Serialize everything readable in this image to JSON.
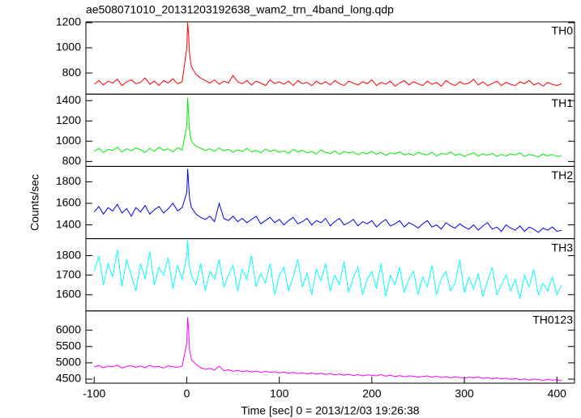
{
  "chart_data": [
    {
      "type": "line",
      "title": "ae508071010_20131203192638_wam2_trn_4band_long.qdp",
      "label": "TH0",
      "color": "#ff0000",
      "x": [
        -100,
        -95,
        -90,
        -85,
        -80,
        -75,
        -70,
        -65,
        -60,
        -55,
        -50,
        -45,
        -40,
        -35,
        -30,
        -25,
        -20,
        -15,
        -10,
        -5,
        0,
        1,
        2,
        3,
        5,
        10,
        15,
        20,
        25,
        30,
        35,
        40,
        45,
        50,
        55,
        60,
        65,
        70,
        75,
        80,
        85,
        90,
        95,
        100,
        105,
        110,
        115,
        120,
        125,
        130,
        135,
        140,
        145,
        150,
        155,
        160,
        165,
        170,
        175,
        180,
        185,
        190,
        195,
        200,
        205,
        210,
        215,
        220,
        225,
        230,
        235,
        240,
        245,
        250,
        255,
        260,
        265,
        270,
        275,
        280,
        285,
        290,
        295,
        300,
        305,
        310,
        315,
        320,
        325,
        330,
        335,
        340,
        345,
        350,
        355,
        360,
        365,
        370,
        375,
        380,
        385,
        390,
        395,
        400,
        405
      ],
      "values": [
        710,
        740,
        705,
        735,
        720,
        750,
        700,
        730,
        745,
        715,
        725,
        760,
        710,
        735,
        700,
        740,
        720,
        755,
        715,
        730,
        1000,
        1200,
        1100,
        950,
        850,
        790,
        760,
        740,
        720,
        745,
        710,
        735,
        720,
        780,
        730,
        715,
        740,
        705,
        735,
        720,
        700,
        745,
        715,
        730,
        710,
        735,
        700,
        740,
        715,
        725,
        700,
        735,
        710,
        730,
        705,
        740,
        715,
        700,
        735,
        720,
        705,
        730,
        715,
        745,
        700,
        725,
        710,
        735,
        695,
        720,
        740,
        705,
        730,
        715,
        700,
        735,
        710,
        725,
        695,
        740,
        715,
        700,
        730,
        710,
        720,
        750,
        705,
        730,
        700,
        715,
        735,
        700,
        725,
        710,
        700,
        730,
        715,
        740,
        705,
        720,
        695,
        725,
        710,
        700,
        715
      ],
      "xlim": [
        -109,
        419
      ],
      "ylim": [
        632,
        1206
      ],
      "yticks": [
        800,
        1000,
        1200
      ]
    },
    {
      "type": "line",
      "label": "TH1",
      "color": "#00ee00",
      "x": [
        -100,
        -95,
        -90,
        -85,
        -80,
        -75,
        -70,
        -65,
        -60,
        -55,
        -50,
        -45,
        -40,
        -35,
        -30,
        -25,
        -20,
        -15,
        -10,
        -5,
        0,
        1,
        2,
        3,
        5,
        10,
        15,
        20,
        25,
        30,
        35,
        40,
        45,
        50,
        55,
        60,
        65,
        70,
        75,
        80,
        85,
        90,
        95,
        100,
        105,
        110,
        115,
        120,
        125,
        130,
        135,
        140,
        145,
        150,
        155,
        160,
        165,
        170,
        175,
        180,
        185,
        190,
        195,
        200,
        205,
        210,
        215,
        220,
        225,
        230,
        235,
        240,
        245,
        250,
        255,
        260,
        265,
        270,
        275,
        280,
        285,
        290,
        295,
        300,
        305,
        310,
        315,
        320,
        325,
        330,
        335,
        340,
        345,
        350,
        355,
        360,
        365,
        370,
        375,
        380,
        385,
        390,
        395,
        400,
        405
      ],
      "values": [
        900,
        930,
        890,
        920,
        910,
        940,
        895,
        925,
        905,
        935,
        915,
        890,
        930,
        900,
        940,
        910,
        925,
        895,
        935,
        915,
        1150,
        1430,
        1250,
        1100,
        1000,
        950,
        930,
        910,
        925,
        900,
        935,
        905,
        920,
        890,
        915,
        900,
        930,
        895,
        910,
        885,
        925,
        900,
        915,
        890,
        905,
        880,
        920,
        895,
        910,
        885,
        900,
        875,
        915,
        890,
        880,
        905,
        870,
        900,
        885,
        895,
        865,
        890,
        875,
        900,
        870,
        890,
        860,
        885,
        875,
        895,
        865,
        880,
        860,
        890,
        875,
        865,
        890,
        855,
        880,
        870,
        895,
        860,
        875,
        850,
        870,
        885,
        855,
        875,
        860,
        880,
        850,
        870,
        855,
        875,
        865,
        885,
        850,
        870,
        860,
        845,
        875,
        855,
        870,
        850,
        860
      ],
      "xlim": [
        -109,
        419
      ],
      "ylim": [
        752,
        1464
      ],
      "yticks": [
        800,
        1000,
        1200,
        1400
      ]
    },
    {
      "type": "line",
      "label": "TH2",
      "color": "#0000ee",
      "ylabel": "Counts/sec",
      "x": [
        -100,
        -95,
        -90,
        -85,
        -80,
        -75,
        -70,
        -65,
        -60,
        -55,
        -50,
        -45,
        -40,
        -35,
        -30,
        -25,
        -20,
        -15,
        -10,
        -5,
        0,
        1,
        2,
        3,
        5,
        10,
        15,
        20,
        25,
        30,
        35,
        40,
        45,
        50,
        55,
        60,
        65,
        70,
        75,
        80,
        85,
        90,
        95,
        100,
        105,
        110,
        115,
        120,
        125,
        130,
        135,
        140,
        145,
        150,
        155,
        160,
        165,
        170,
        175,
        180,
        185,
        190,
        195,
        200,
        205,
        210,
        215,
        220,
        225,
        230,
        235,
        240,
        245,
        250,
        255,
        260,
        265,
        270,
        275,
        280,
        285,
        290,
        295,
        300,
        305,
        310,
        315,
        320,
        325,
        330,
        335,
        340,
        345,
        350,
        355,
        360,
        365,
        370,
        375,
        380,
        385,
        390,
        395,
        400,
        405
      ],
      "values": [
        1520,
        1570,
        1500,
        1560,
        1530,
        1590,
        1510,
        1550,
        1480,
        1560,
        1520,
        1580,
        1500,
        1540,
        1570,
        1510,
        1550,
        1600,
        1530,
        1560,
        1700,
        1920,
        1780,
        1650,
        1560,
        1500,
        1470,
        1450,
        1480,
        1430,
        1600,
        1460,
        1440,
        1480,
        1430,
        1460,
        1420,
        1450,
        1480,
        1410,
        1440,
        1470,
        1420,
        1450,
        1400,
        1440,
        1470,
        1410,
        1430,
        1460,
        1400,
        1440,
        1420,
        1460,
        1390,
        1430,
        1460,
        1400,
        1420,
        1450,
        1390,
        1430,
        1410,
        1440,
        1380,
        1420,
        1450,
        1390,
        1410,
        1440,
        1380,
        1420,
        1400,
        1370,
        1410,
        1440,
        1380,
        1400,
        1360,
        1420,
        1390,
        1370,
        1410,
        1380,
        1360,
        1400,
        1350,
        1390,
        1420,
        1360,
        1380,
        1340,
        1400,
        1370,
        1350,
        1390,
        1340,
        1380,
        1360,
        1330,
        1370,
        1350,
        1380,
        1340,
        1350
      ],
      "xlim": [
        -109,
        419
      ],
      "ylim": [
        1272,
        1943
      ],
      "yticks": [
        1400,
        1600,
        1800
      ]
    },
    {
      "type": "line",
      "label": "TH3",
      "color": "#00ffff",
      "x": [
        -100,
        -95,
        -90,
        -85,
        -80,
        -75,
        -70,
        -65,
        -60,
        -55,
        -50,
        -45,
        -40,
        -35,
        -30,
        -25,
        -20,
        -15,
        -10,
        -5,
        0,
        1,
        2,
        3,
        5,
        10,
        15,
        20,
        25,
        30,
        35,
        40,
        45,
        50,
        55,
        60,
        65,
        70,
        75,
        80,
        85,
        90,
        95,
        100,
        105,
        110,
        115,
        120,
        125,
        130,
        135,
        140,
        145,
        150,
        155,
        160,
        165,
        170,
        175,
        180,
        185,
        190,
        195,
        200,
        205,
        210,
        215,
        220,
        225,
        230,
        235,
        240,
        245,
        250,
        255,
        260,
        265,
        270,
        275,
        280,
        285,
        290,
        295,
        300,
        305,
        310,
        315,
        320,
        325,
        330,
        335,
        340,
        345,
        350,
        355,
        360,
        365,
        370,
        375,
        380,
        385,
        390,
        395,
        400,
        405
      ],
      "values": [
        1720,
        1800,
        1650,
        1760,
        1690,
        1830,
        1640,
        1780,
        1700,
        1620,
        1760,
        1680,
        1820,
        1650,
        1740,
        1700,
        1790,
        1630,
        1750,
        1680,
        1800,
        1880,
        1790,
        1740,
        1700,
        1650,
        1760,
        1620,
        1720,
        1680,
        1780,
        1640,
        1700,
        1750,
        1620,
        1730,
        1680,
        1800,
        1640,
        1710,
        1660,
        1760,
        1600,
        1700,
        1740,
        1620,
        1690,
        1780,
        1640,
        1710,
        1600,
        1730,
        1670,
        1760,
        1620,
        1700,
        1650,
        1770,
        1610,
        1690,
        1740,
        1600,
        1680,
        1720,
        1630,
        1760,
        1590,
        1700,
        1650,
        1740,
        1610,
        1680,
        1720,
        1600,
        1690,
        1640,
        1750,
        1600,
        1680,
        1720,
        1620,
        1660,
        1780,
        1610,
        1690,
        1630,
        1710,
        1590,
        1670,
        1740,
        1600,
        1650,
        1700,
        1620,
        1680,
        1580,
        1700,
        1640,
        1730,
        1600,
        1660,
        1620,
        1690,
        1600,
        1650
      ],
      "xlim": [
        -109,
        419
      ],
      "ylim": [
        1517,
        1887
      ],
      "yticks": [
        1600,
        1700,
        1800
      ]
    },
    {
      "type": "line",
      "label": "TH0123",
      "color": "#ff00ff",
      "xlabel": "Time [sec] 0 = 2013/12/03 19:26:38",
      "x": [
        -100,
        -95,
        -90,
        -85,
        -80,
        -75,
        -70,
        -65,
        -60,
        -55,
        -50,
        -45,
        -40,
        -35,
        -30,
        -25,
        -20,
        -15,
        -10,
        -5,
        0,
        1,
        2,
        3,
        5,
        10,
        15,
        20,
        25,
        30,
        35,
        40,
        45,
        50,
        55,
        60,
        65,
        70,
        75,
        80,
        85,
        90,
        95,
        100,
        105,
        110,
        115,
        120,
        125,
        130,
        135,
        140,
        145,
        150,
        155,
        160,
        165,
        170,
        175,
        180,
        185,
        190,
        195,
        200,
        205,
        210,
        215,
        220,
        225,
        230,
        235,
        240,
        245,
        250,
        255,
        260,
        265,
        270,
        275,
        280,
        285,
        290,
        295,
        300,
        305,
        310,
        315,
        320,
        325,
        330,
        335,
        340,
        345,
        350,
        355,
        360,
        365,
        370,
        375,
        380,
        385,
        390,
        395,
        400,
        405
      ],
      "values": [
        4870,
        4920,
        4850,
        4900,
        4880,
        4930,
        4840,
        4890,
        4910,
        4860,
        4900,
        4850,
        4920,
        4870,
        4890,
        4840,
        4910,
        4880,
        4860,
        4900,
        5600,
        6400,
        6000,
        5400,
        5100,
        4950,
        4850,
        4800,
        4830,
        4780,
        4900,
        4760,
        4790,
        4740,
        4770,
        4730,
        4760,
        4720,
        4750,
        4700,
        4740,
        4710,
        4730,
        4690,
        4720,
        4680,
        4710,
        4670,
        4700,
        4660,
        4690,
        4650,
        4680,
        4640,
        4670,
        4630,
        4660,
        4620,
        4650,
        4610,
        4640,
        4600,
        4630,
        4620,
        4600,
        4640,
        4590,
        4620,
        4580,
        4610,
        4570,
        4600,
        4590,
        4560,
        4580,
        4600,
        4560,
        4590,
        4550,
        4580,
        4540,
        4570,
        4550,
        4530,
        4560,
        4540,
        4570,
        4520,
        4550,
        4510,
        4540,
        4500,
        4530,
        4490,
        4520,
        4480,
        4510,
        4470,
        4500,
        4490,
        4460,
        4500,
        4470,
        4480,
        4460
      ],
      "xlim": [
        -109,
        419
      ],
      "ylim": [
        4377,
        6591
      ],
      "yticks": [
        4500,
        5000,
        5500,
        6000
      ],
      "xticks": [
        -100,
        0,
        100,
        200,
        300,
        400
      ]
    }
  ]
}
